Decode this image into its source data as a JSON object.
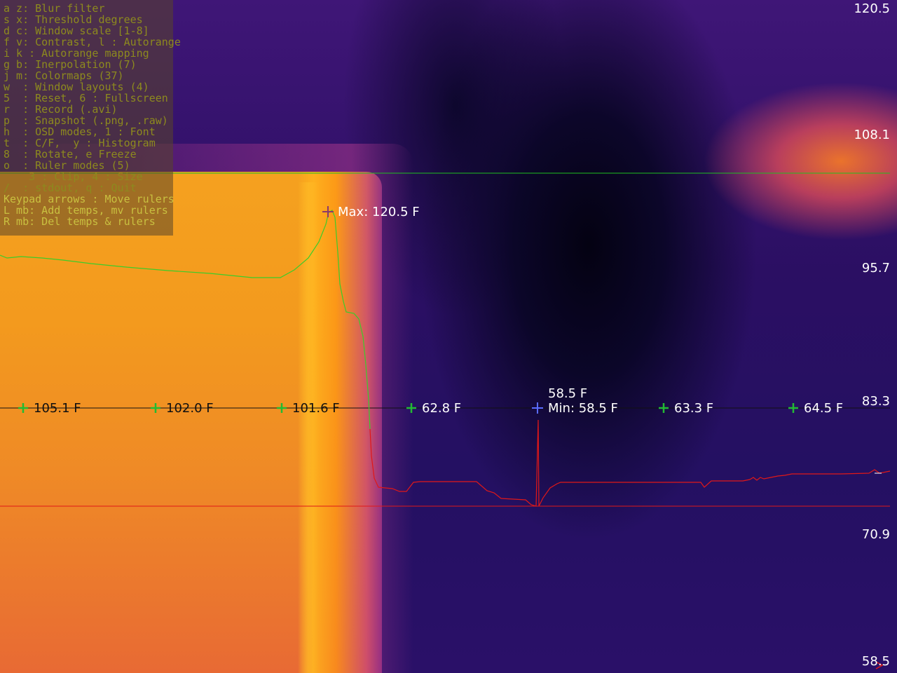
{
  "help_overlay": [
    {
      "text": "a z: Blur filter",
      "bright": false
    },
    {
      "text": "s x: Threshold degrees",
      "bright": false
    },
    {
      "text": "d c: Window scale [1-8]",
      "bright": false
    },
    {
      "text": "f v: Contrast, l : Autorange",
      "bright": false
    },
    {
      "text": "i k : Autorange mapping",
      "bright": false
    },
    {
      "text": "g b: Inerpolation (7)",
      "bright": false
    },
    {
      "text": "j m: Colormaps (37)",
      "bright": false
    },
    {
      "text": "w  : Window layouts (4)",
      "bright": false
    },
    {
      "text": "5  : Reset, 6 : Fullscreen",
      "bright": false
    },
    {
      "text": "r  : Record (.avi)",
      "bright": false
    },
    {
      "text": "p  : Snapshot (.png, .raw)",
      "bright": false
    },
    {
      "text": "h  : OSD modes, 1 : Font",
      "bright": false
    },
    {
      "text": "t  : C/F,  y : Histogram",
      "bright": false
    },
    {
      "text": "8  : Rotate, e Freeze",
      "bright": false
    },
    {
      "text": "o  : Ruler modes (5)",
      "bright": false
    },
    {
      "text": "    3 : Clip, 4 : Size",
      "bright": false
    },
    {
      "text": "/  : stdout, q : Quit",
      "bright": false
    },
    {
      "text": "Keypad arrows : Move rulers",
      "bright": true
    },
    {
      "text": "L mb: Add temps, mv rulers",
      "bright": true
    },
    {
      "text": "R mb: Del temps & rulers",
      "bright": true
    }
  ],
  "colorbar_scale": [
    "120.5",
    "108.1",
    "95.7",
    "83.3",
    "70.9",
    "58.5"
  ],
  "max_marker": {
    "label": "Max: 120.5 F"
  },
  "min_marker": {
    "label_top": "58.5 F",
    "label": "Min: 58.5 F"
  },
  "ruler_temps": [
    "105.1 F",
    "102.0 F",
    "101.6 F",
    "62.8 F",
    "63.3 F",
    "64.5 F"
  ],
  "colors": {
    "max_ruler": "#1fbf1f",
    "min_ruler": "#e01818",
    "temp_marker": "#22bb33",
    "max_marker": "#8a3a6a",
    "min_marker": "#5a6cff",
    "help_text": "#8d8a1e",
    "help_text_bright": "#c9c040"
  }
}
